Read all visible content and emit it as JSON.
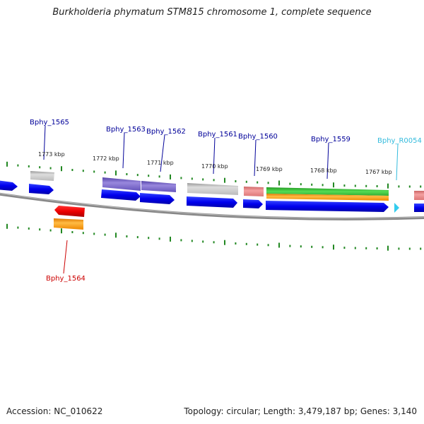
{
  "title": "Burkholderia phymatum STM815 chromosome 1, complete sequence",
  "footer": {
    "accession": "Accession: NC_010622",
    "topology": "Topology: circular; Length: 3,479,187 bp; Genes: 3,140"
  },
  "colors": {
    "cds": "#0000ee",
    "gene_gray": "#bbbbbb",
    "gene_purple": "#7766cc",
    "gene_pink": "#e88888",
    "gene_green": "#33bb33",
    "gene_orange": "#ff9900",
    "gene_red": "#ee0000",
    "rna": "#33ccee",
    "backbone": "#888888",
    "ticks": "#228822",
    "label_default": "#000099",
    "label_red": "#cc0000",
    "label_rna": "#33bbdd"
  },
  "gene_labels": [
    {
      "id": "lbl-1565",
      "text": "Bphy_1565",
      "color": "label_default"
    },
    {
      "id": "lbl-1563",
      "text": "Bphy_1563",
      "color": "label_default"
    },
    {
      "id": "lbl-1562",
      "text": "Bphy_1562",
      "color": "label_default"
    },
    {
      "id": "lbl-1561",
      "text": "Bphy_1561",
      "color": "label_default"
    },
    {
      "id": "lbl-1560",
      "text": "Bphy_1560",
      "color": "label_default"
    },
    {
      "id": "lbl-1559",
      "text": "Bphy_1559",
      "color": "label_default"
    },
    {
      "id": "lbl-r0054",
      "text": "Bphy_R0054",
      "color": "label_rna"
    },
    {
      "id": "lbl-1564",
      "text": "Bphy_1564",
      "color": "label_red"
    }
  ],
  "kbp_labels": [
    "1773 kbp",
    "1772 kbp",
    "1771 kbp",
    "1770 kbp",
    "1769 kbp",
    "1768 kbp",
    "1767 kbp"
  ]
}
